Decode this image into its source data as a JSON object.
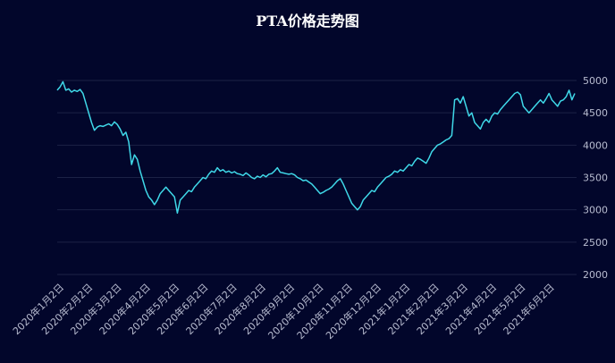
{
  "chart_data": {
    "type": "line",
    "title": "PTA价格走势图",
    "xlabel": "",
    "ylabel": "",
    "ylim": [
      2000,
      5000
    ],
    "y_ticks": [
      2000,
      2500,
      3000,
      3500,
      4000,
      4500,
      5000
    ],
    "grid": true,
    "x_tick_labels": [
      "2020年1月2日",
      "2020年2月2日",
      "2020年3月2日",
      "2020年4月2日",
      "2020年5月2日",
      "2020年6月2日",
      "2020年7月2日",
      "2020年8月2日",
      "2020年9月2日",
      "2020年10月2日",
      "2020年11月2日",
      "2020年12月2日",
      "2021年1月2日",
      "2021年2月2日",
      "2021年3月2日",
      "2021年4月2日",
      "2021年5月2日",
      "2021年6月2日"
    ],
    "series": [
      {
        "name": "PTA价格",
        "color": "#3fd8e8",
        "values": [
          4850,
          4900,
          4980,
          4850,
          4870,
          4820,
          4850,
          4830,
          4860,
          4800,
          4650,
          4500,
          4350,
          4230,
          4280,
          4300,
          4290,
          4310,
          4330,
          4300,
          4360,
          4320,
          4250,
          4150,
          4200,
          4050,
          3700,
          3850,
          3780,
          3600,
          3450,
          3300,
          3200,
          3150,
          3080,
          3150,
          3250,
          3300,
          3350,
          3300,
          3250,
          3200,
          2950,
          3150,
          3200,
          3250,
          3300,
          3280,
          3350,
          3400,
          3450,
          3500,
          3480,
          3550,
          3600,
          3580,
          3650,
          3600,
          3620,
          3580,
          3600,
          3570,
          3590,
          3560,
          3550,
          3530,
          3570,
          3540,
          3500,
          3480,
          3520,
          3500,
          3540,
          3510,
          3550,
          3560,
          3600,
          3650,
          3580,
          3570,
          3560,
          3550,
          3560,
          3540,
          3500,
          3480,
          3450,
          3460,
          3430,
          3400,
          3350,
          3300,
          3250,
          3270,
          3300,
          3320,
          3350,
          3400,
          3450,
          3480,
          3400,
          3300,
          3200,
          3100,
          3050,
          3000,
          3050,
          3150,
          3200,
          3250,
          3300,
          3280,
          3350,
          3400,
          3450,
          3500,
          3520,
          3550,
          3600,
          3580,
          3620,
          3600,
          3650,
          3700,
          3680,
          3750,
          3800,
          3780,
          3750,
          3720,
          3800,
          3900,
          3950,
          4000,
          4020,
          4050,
          4080,
          4100,
          4150,
          4700,
          4720,
          4650,
          4750,
          4600,
          4450,
          4500,
          4350,
          4300,
          4250,
          4350,
          4400,
          4350,
          4450,
          4500,
          4480,
          4550,
          4600,
          4650,
          4700,
          4750,
          4800,
          4820,
          4780,
          4600,
          4550,
          4500,
          4550,
          4600,
          4650,
          4700,
          4650,
          4720,
          4800,
          4700,
          4650,
          4600,
          4680,
          4700,
          4750,
          4850,
          4700,
          4800
        ]
      }
    ]
  }
}
